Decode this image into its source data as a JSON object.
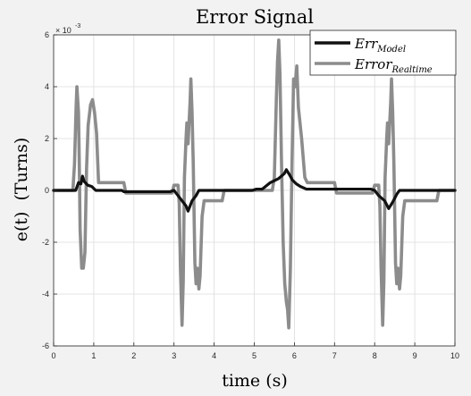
{
  "chart_data": {
    "type": "line",
    "title": "Error Signal",
    "xlabel": "time (s)",
    "ylabel": "e(t)  (Turns)",
    "exponent_label": "× 10",
    "exponent_power": "-3",
    "xlim": [
      0,
      10
    ],
    "ylim": [
      -6,
      6
    ],
    "xticks": [
      "0",
      "1",
      "2",
      "3",
      "4",
      "5",
      "6",
      "7",
      "8",
      "9",
      "10"
    ],
    "yticks": [
      "-6",
      "-4",
      "-2",
      "0",
      "2",
      "4",
      "6"
    ],
    "grid": true,
    "legend_position": "top-right",
    "x_multiplier_note": "y values in units of 1e-3",
    "series": [
      {
        "name_main": "Err",
        "name_sub": "Model",
        "color": "#111111",
        "points": [
          [
            0,
            0
          ],
          [
            0.55,
            0
          ],
          [
            0.62,
            0.3
          ],
          [
            0.68,
            0.25
          ],
          [
            0.72,
            0.55
          ],
          [
            0.76,
            0.35
          ],
          [
            0.85,
            0.2
          ],
          [
            0.95,
            0.15
          ],
          [
            1.05,
            0
          ],
          [
            1.7,
            0
          ],
          [
            1.75,
            -0.05
          ],
          [
            2.9,
            -0.05
          ],
          [
            3.0,
            0
          ],
          [
            3.1,
            -0.2
          ],
          [
            3.2,
            -0.4
          ],
          [
            3.3,
            -0.6
          ],
          [
            3.35,
            -0.8
          ],
          [
            3.45,
            -0.4
          ],
          [
            3.55,
            -0.2
          ],
          [
            3.62,
            0
          ],
          [
            4.95,
            0
          ],
          [
            5.05,
            0.05
          ],
          [
            5.2,
            0.05
          ],
          [
            5.4,
            0.3
          ],
          [
            5.6,
            0.45
          ],
          [
            5.75,
            0.65
          ],
          [
            5.8,
            0.8
          ],
          [
            5.88,
            0.6
          ],
          [
            5.95,
            0.4
          ],
          [
            6.05,
            0.25
          ],
          [
            6.15,
            0.15
          ],
          [
            6.3,
            0.05
          ],
          [
            7.9,
            0.05
          ],
          [
            8.0,
            0
          ],
          [
            8.1,
            -0.2
          ],
          [
            8.25,
            -0.4
          ],
          [
            8.35,
            -0.7
          ],
          [
            8.45,
            -0.45
          ],
          [
            8.55,
            -0.15
          ],
          [
            8.62,
            0
          ],
          [
            9.55,
            0
          ],
          [
            10,
            0
          ]
        ]
      },
      {
        "name_main": "Error",
        "name_sub": "Realtime",
        "color": "#8c8c8c",
        "points": [
          [
            0,
            0
          ],
          [
            0.48,
            0
          ],
          [
            0.52,
            1.0
          ],
          [
            0.56,
            3.2
          ],
          [
            0.58,
            4.0
          ],
          [
            0.62,
            3.0
          ],
          [
            0.64,
            1.0
          ],
          [
            0.66,
            -1.5
          ],
          [
            0.7,
            -3.0
          ],
          [
            0.74,
            -3.0
          ],
          [
            0.78,
            -2.4
          ],
          [
            0.82,
            0.8
          ],
          [
            0.86,
            2.5
          ],
          [
            0.92,
            3.3
          ],
          [
            0.97,
            3.5
          ],
          [
            1.02,
            3.0
          ],
          [
            1.07,
            2.2
          ],
          [
            1.12,
            0.3
          ],
          [
            1.75,
            0.3
          ],
          [
            1.8,
            -0.1
          ],
          [
            2.95,
            -0.1
          ],
          [
            3.0,
            0.2
          ],
          [
            3.1,
            0.2
          ],
          [
            3.13,
            -0.5
          ],
          [
            3.16,
            -3.0
          ],
          [
            3.2,
            -5.2
          ],
          [
            3.23,
            -3.5
          ],
          [
            3.26,
            0.5
          ],
          [
            3.3,
            2.0
          ],
          [
            3.32,
            2.6
          ],
          [
            3.35,
            1.8
          ],
          [
            3.4,
            3.4
          ],
          [
            3.42,
            4.3
          ],
          [
            3.45,
            3.0
          ],
          [
            3.48,
            1.0
          ],
          [
            3.52,
            -2.8
          ],
          [
            3.55,
            -3.6
          ],
          [
            3.58,
            -3.0
          ],
          [
            3.62,
            -3.8
          ],
          [
            3.65,
            -3.3
          ],
          [
            3.7,
            -1.0
          ],
          [
            3.75,
            -0.4
          ],
          [
            4.2,
            -0.4
          ],
          [
            4.25,
            0
          ],
          [
            5.45,
            0
          ],
          [
            5.5,
            0.5
          ],
          [
            5.55,
            3.5
          ],
          [
            5.58,
            5.0
          ],
          [
            5.61,
            5.8
          ],
          [
            5.64,
            4.5
          ],
          [
            5.68,
            1.0
          ],
          [
            5.72,
            -2.0
          ],
          [
            5.76,
            -3.6
          ],
          [
            5.8,
            -4.3
          ],
          [
            5.83,
            -4.6
          ],
          [
            5.86,
            -5.3
          ],
          [
            5.9,
            -3.0
          ],
          [
            5.94,
            1.0
          ],
          [
            5.98,
            4.3
          ],
          [
            6.02,
            4.0
          ],
          [
            6.06,
            4.8
          ],
          [
            6.1,
            3.2
          ],
          [
            6.18,
            2.0
          ],
          [
            6.26,
            0.5
          ],
          [
            6.32,
            0.3
          ],
          [
            7.0,
            0.3
          ],
          [
            7.05,
            -0.1
          ],
          [
            7.95,
            -0.1
          ],
          [
            8.0,
            0.2
          ],
          [
            8.1,
            0.2
          ],
          [
            8.13,
            -0.6
          ],
          [
            8.16,
            -3.0
          ],
          [
            8.2,
            -5.2
          ],
          [
            8.23,
            -3.5
          ],
          [
            8.26,
            0.5
          ],
          [
            8.3,
            2.0
          ],
          [
            8.32,
            2.6
          ],
          [
            8.35,
            1.8
          ],
          [
            8.4,
            3.4
          ],
          [
            8.42,
            4.3
          ],
          [
            8.45,
            3.0
          ],
          [
            8.48,
            1.0
          ],
          [
            8.52,
            -2.8
          ],
          [
            8.55,
            -3.6
          ],
          [
            8.58,
            -3.0
          ],
          [
            8.62,
            -3.8
          ],
          [
            8.65,
            -3.3
          ],
          [
            8.7,
            -1.0
          ],
          [
            8.75,
            -0.4
          ],
          [
            9.55,
            -0.4
          ],
          [
            9.6,
            0
          ],
          [
            10,
            0
          ]
        ]
      }
    ]
  }
}
